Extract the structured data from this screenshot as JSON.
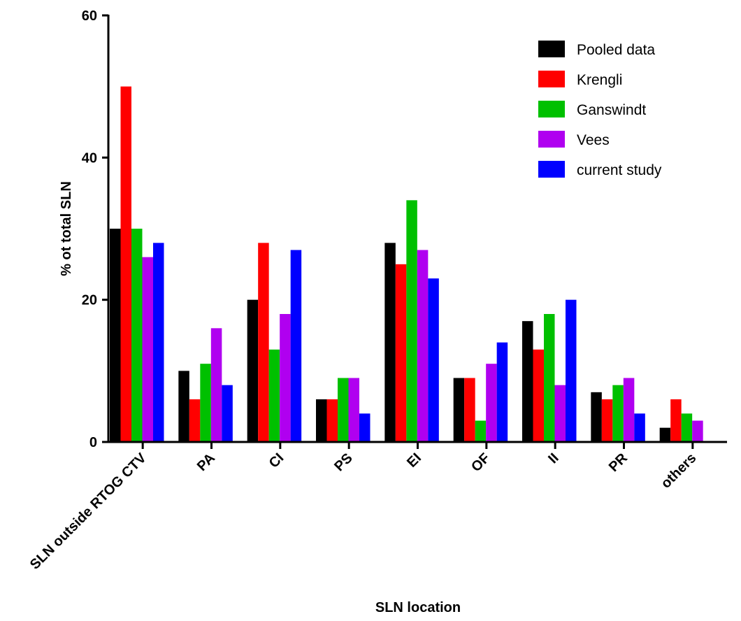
{
  "chart_data": {
    "type": "bar",
    "title": "",
    "xlabel": "SLN location",
    "ylabel": "% ot total SLN",
    "ylim": [
      0,
      60
    ],
    "yticks": [
      0,
      20,
      40,
      60
    ],
    "grid": false,
    "legend_position": "top-right",
    "categories": [
      "SLN outside RTOG CTV",
      "PA",
      "CI",
      "PS",
      "EI",
      "OF",
      "II",
      "PR",
      "others"
    ],
    "series": [
      {
        "name": "Pooled data",
        "color": "#000000",
        "values": [
          30,
          10,
          20,
          6,
          28,
          9,
          17,
          7,
          2
        ]
      },
      {
        "name": "Krengli",
        "color": "#ff0000",
        "values": [
          50,
          6,
          28,
          6,
          25,
          9,
          13,
          6,
          6
        ]
      },
      {
        "name": "Ganswindt",
        "color": "#00c000",
        "values": [
          30,
          11,
          13,
          9,
          34,
          3,
          18,
          8,
          4
        ]
      },
      {
        "name": "Vees",
        "color": "#b000f0",
        "values": [
          26,
          16,
          18,
          9,
          27,
          11,
          8,
          9,
          3
        ]
      },
      {
        "name": "current study",
        "color": "#0000ff",
        "values": [
          28,
          8,
          27,
          4,
          23,
          14,
          20,
          4,
          null
        ]
      }
    ]
  }
}
